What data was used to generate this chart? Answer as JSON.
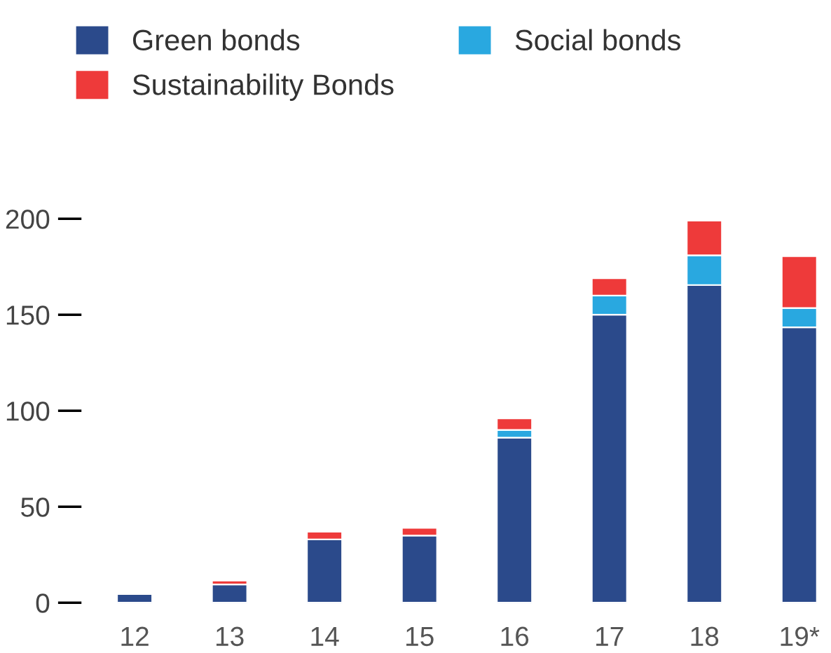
{
  "chart_data": {
    "type": "bar",
    "stacked": true,
    "categories": [
      "12",
      "13",
      "14",
      "15",
      "16",
      "17",
      "18",
      "19*"
    ],
    "series": [
      {
        "name": "Green bonds",
        "color": "#2b4a8b",
        "values": [
          4.5,
          9.5,
          33,
          35,
          86,
          150,
          165.5,
          143.5
        ]
      },
      {
        "name": "Social bonds",
        "color": "#29a8e0",
        "values": [
          0,
          0,
          0,
          0,
          4,
          10,
          15.5,
          10
        ]
      },
      {
        "name": "Sustainability Bonds",
        "color": "#ee3a3a",
        "values": [
          0,
          2,
          4,
          4,
          6,
          9,
          18,
          27
        ]
      }
    ],
    "ylim": [
      0,
      200
    ],
    "yticks": [
      0,
      50,
      100,
      150,
      200
    ],
    "grid": false,
    "legend": "top left"
  }
}
